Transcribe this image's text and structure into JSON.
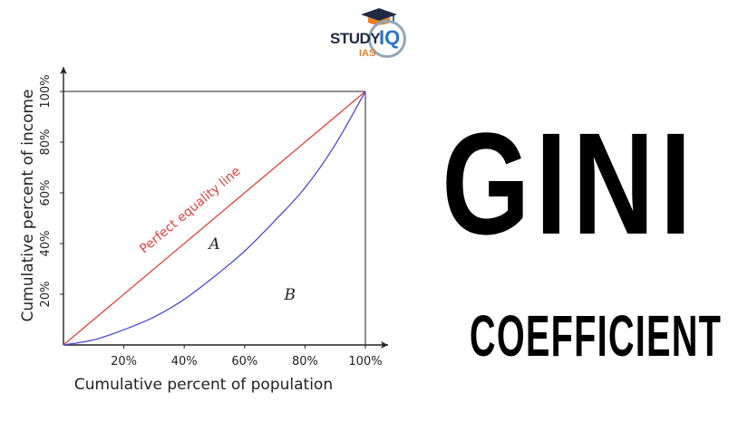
{
  "logo": {
    "study": "STUDY",
    "iq": "IQ",
    "ias": "IAS"
  },
  "headline": {
    "title": "GINI",
    "subtitle": "COEFFICIENT"
  },
  "chart_data": {
    "type": "line",
    "title": "",
    "xlabel": "Cumulative percent of population",
    "ylabel": "Cumulative percent of income",
    "xlim": [
      0,
      100
    ],
    "ylim": [
      0,
      100
    ],
    "grid": false,
    "x_ticks": [
      "20%",
      "40%",
      "60%",
      "80%",
      "100%"
    ],
    "y_ticks": [
      "20%",
      "40%",
      "60%",
      "80%",
      "100%"
    ],
    "series": [
      {
        "name": "Perfect equality line",
        "color": "#e0403c",
        "x": [
          0,
          100
        ],
        "y": [
          0,
          100
        ]
      },
      {
        "name": "",
        "color": "#4a4ad8",
        "x": [
          0,
          10,
          20,
          30,
          40,
          50,
          60,
          70,
          80,
          90,
          100
        ],
        "y": [
          0,
          2,
          6,
          11,
          18,
          27,
          37,
          49,
          62,
          79,
          100
        ]
      }
    ],
    "annotations": [
      {
        "text": "A",
        "x": 50,
        "y": 40
      },
      {
        "text": "B",
        "x": 75,
        "y": 20
      }
    ]
  }
}
